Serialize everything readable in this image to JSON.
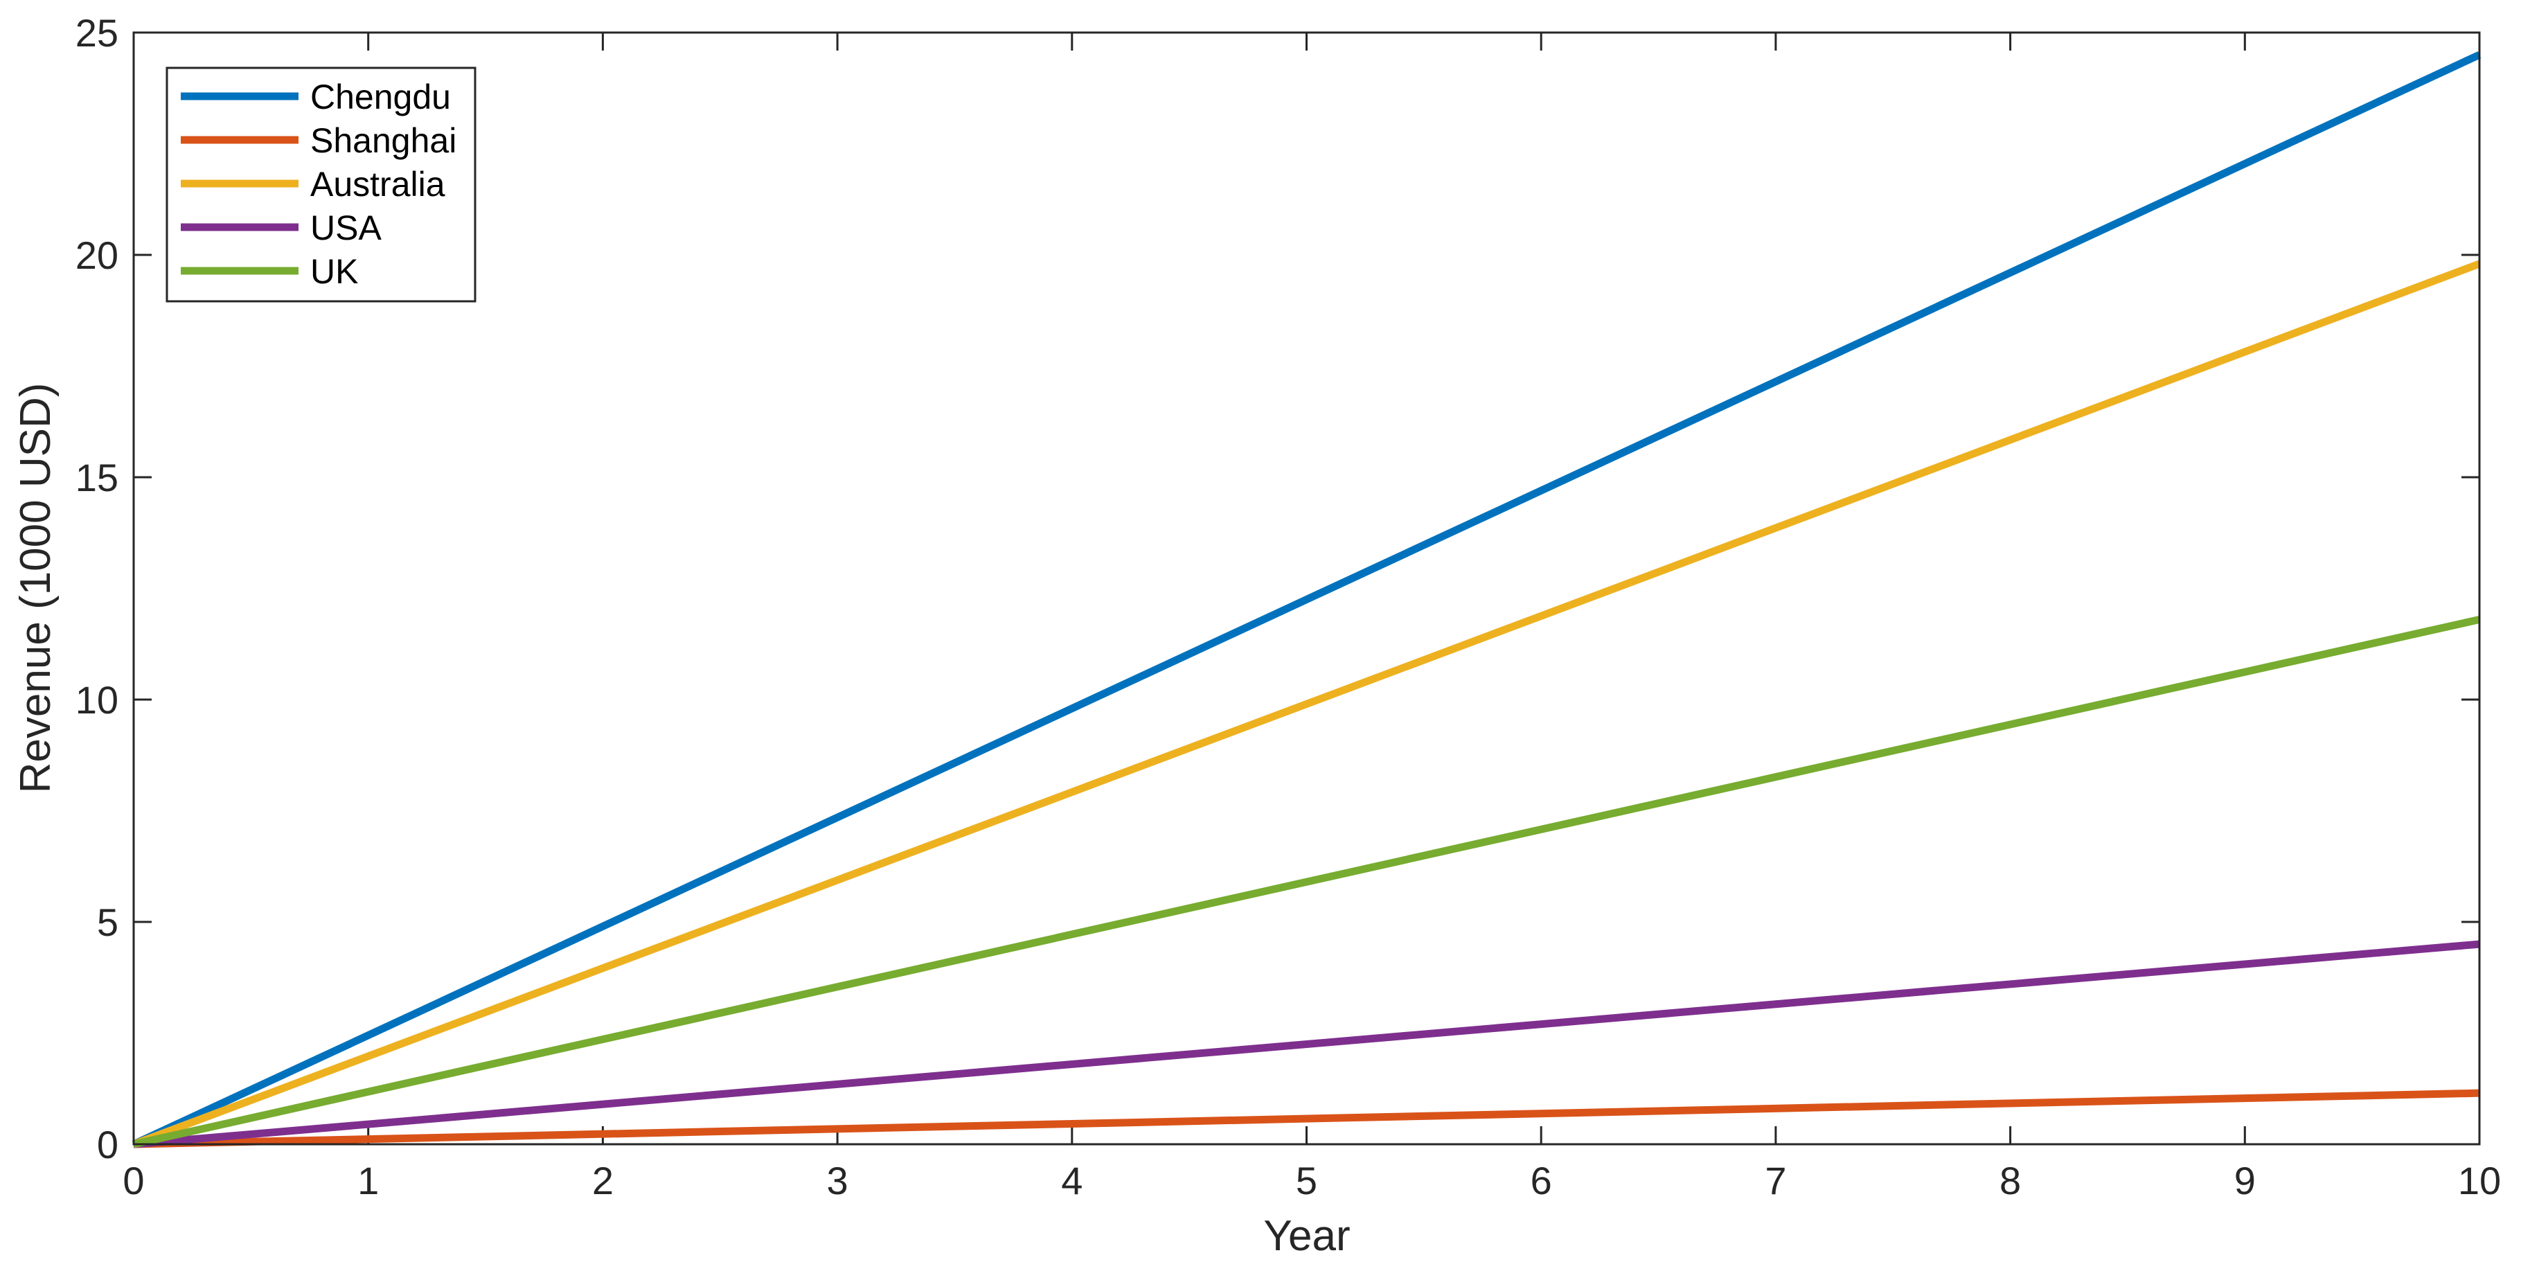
{
  "chart_data": {
    "type": "line",
    "title": "",
    "xlabel": "Year",
    "ylabel": "Revenue (1000 USD)",
    "xlim": [
      0,
      10
    ],
    "ylim": [
      0,
      25
    ],
    "xticks": [
      "0",
      "1",
      "2",
      "3",
      "4",
      "5",
      "6",
      "7",
      "8",
      "9",
      "10"
    ],
    "yticks": [
      "0",
      "5",
      "10",
      "15",
      "20",
      "25"
    ],
    "grid": false,
    "legend_position": "top-left",
    "series": [
      {
        "name": "Chengdu",
        "color": "#0072BD",
        "x": [
          0,
          10
        ],
        "y": [
          0,
          24.5
        ]
      },
      {
        "name": "Shanghai",
        "color": "#D95319",
        "x": [
          0,
          10
        ],
        "y": [
          0,
          1.15
        ]
      },
      {
        "name": "Australia",
        "color": "#EDB120",
        "x": [
          0,
          10
        ],
        "y": [
          0,
          19.8
        ]
      },
      {
        "name": "USA",
        "color": "#7E2F8E",
        "x": [
          0,
          10
        ],
        "y": [
          0,
          4.5
        ]
      },
      {
        "name": "UK",
        "color": "#77AC30",
        "x": [
          0,
          10
        ],
        "y": [
          0,
          11.8
        ]
      }
    ]
  }
}
